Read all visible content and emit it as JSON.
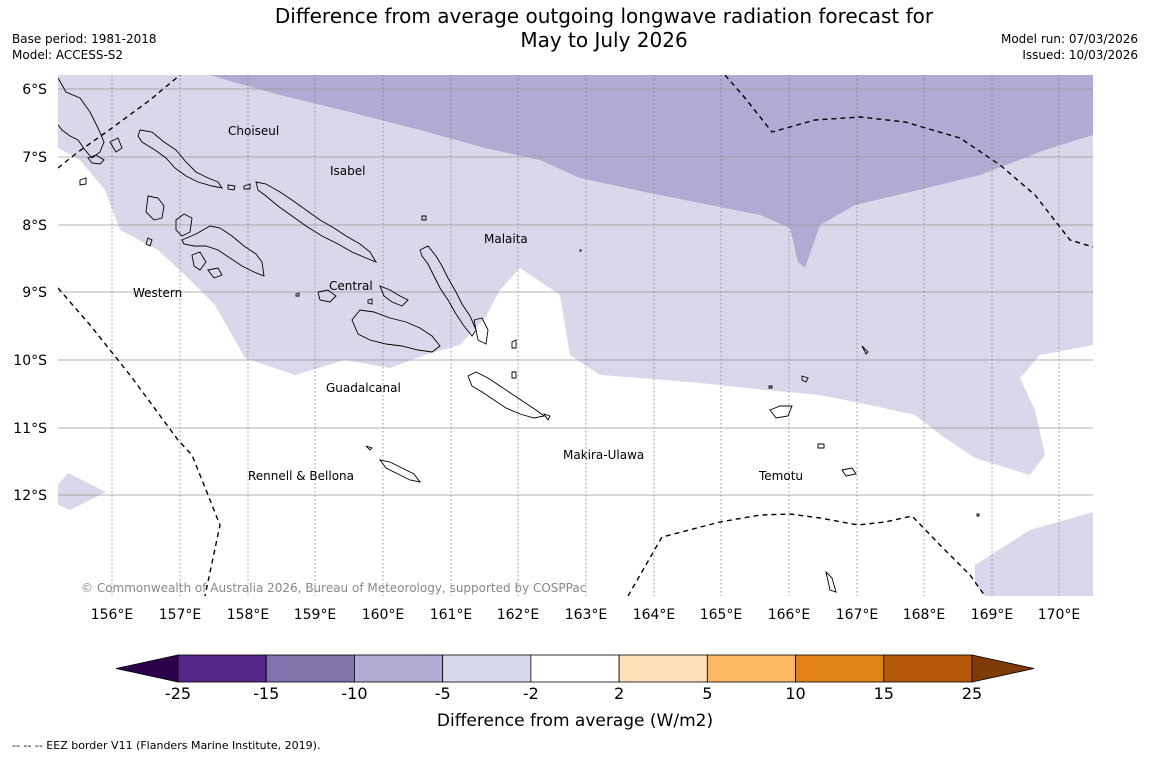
{
  "header": {
    "title": "Difference from average outgoing longwave radiation forecast for\nMay to July 2026",
    "base_period": "Base period: 1981-2018",
    "model": "Model: ACCESS-S2",
    "model_run": "Model run: 07/03/2026",
    "issued": "Issued: 10/03/2026"
  },
  "map": {
    "latitudes": [
      "6°S",
      "7°S",
      "8°S",
      "9°S",
      "10°S",
      "11°S",
      "12°S"
    ],
    "longitudes": [
      "156°E",
      "157°E",
      "158°E",
      "159°E",
      "160°E",
      "161°E",
      "162°E",
      "163°E",
      "164°E",
      "165°E",
      "166°E",
      "167°E",
      "168°E",
      "169°E",
      "170°E"
    ],
    "places": {
      "choiseul": "Choiseul",
      "isabel": "Isabel",
      "malaita": "Malaita",
      "western": "Western",
      "central": "Central",
      "guadalcanal": "Guadalcanal",
      "makira": "Makira-Ulawa",
      "temotu": "Temotu",
      "rennell": "Rennell & Bellona"
    },
    "copyright": "© Commonwealth of Australia 2026, Bureau of Meteorology, supported by COSPPac",
    "colors": {
      "minus5_to_minus2": "#d8d8ea",
      "minus10_to_minus5": "#b1aad3",
      "land_outline": "#000000",
      "grid": "#808080"
    }
  },
  "colorbar": {
    "ticks": [
      "-25",
      "-15",
      "-10",
      "-5",
      "-2",
      "2",
      "5",
      "10",
      "15",
      "25"
    ],
    "colors": [
      "#2d004b",
      "#542789",
      "#8073ac",
      "#b2abd2",
      "#d8daeb",
      "#ffffff",
      "#fee0b6",
      "#fdb863",
      "#e08214",
      "#b35806",
      "#7f3b08"
    ],
    "label": "Difference from average (W/m2)"
  },
  "footer": {
    "eez_note": "--  --  -- EEZ border V11 (Flanders Marine Institute, 2019)."
  }
}
